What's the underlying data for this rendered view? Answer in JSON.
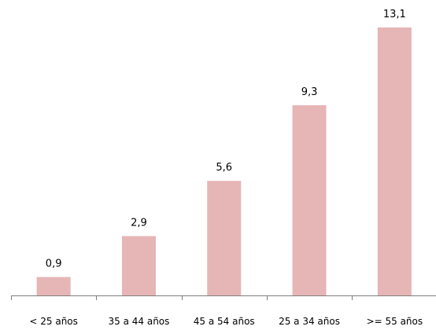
{
  "chart_data": {
    "type": "bar",
    "categories": [
      "< 25 años",
      "35 a 44 años",
      "45 a 54 años",
      "25 a 34 años",
      ">= 55 años"
    ],
    "values": [
      0.9,
      2.9,
      5.6,
      9.3,
      13.1
    ],
    "value_labels": [
      "0,9",
      "2,9",
      "5,6",
      "9,3",
      "13,1"
    ],
    "title": "",
    "xlabel": "",
    "ylabel": "",
    "ylim": [
      0,
      13.1
    ],
    "grid": false,
    "legend": "none",
    "colors": {
      "bar": "#e6b5b5",
      "axis": "#7f7f7f"
    }
  }
}
